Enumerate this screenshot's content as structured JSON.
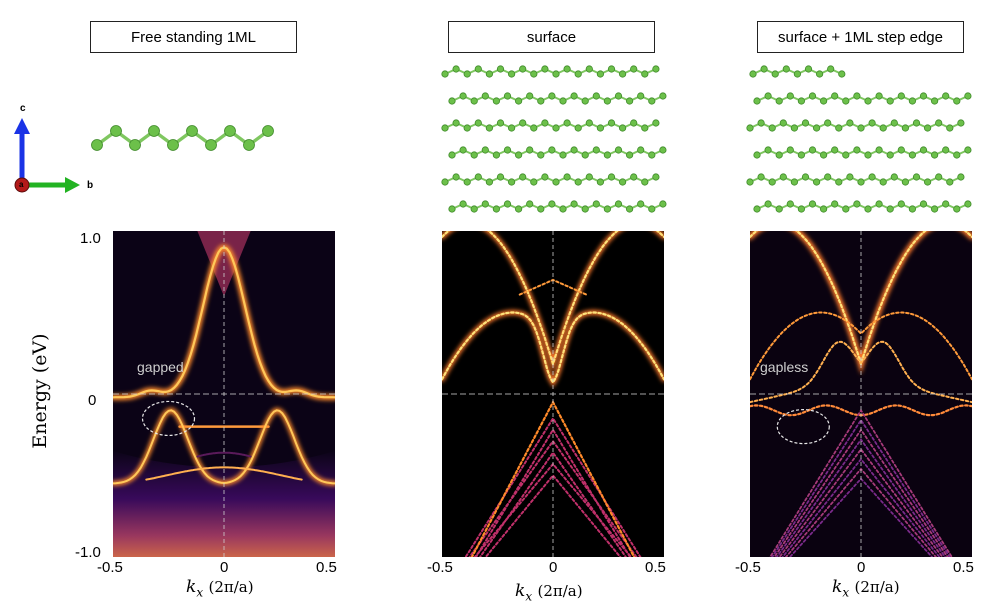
{
  "titles": {
    "left": "Free standing 1ML",
    "middle": "surface",
    "right": "surface + 1ML step edge"
  },
  "axes": {
    "y_title": "Energy (eV)",
    "y_ticks": [
      "1.0",
      "0",
      "-1.0"
    ],
    "x_ticks": [
      "-0.5",
      "0",
      "0.5"
    ],
    "x_label_k": "k",
    "x_label_sub": "x",
    "x_label_unit": "(2π/a)"
  },
  "annotations": {
    "left": "gapped",
    "right": "gapless"
  },
  "triad": {
    "c": "c",
    "b": "b",
    "a": "a"
  },
  "colors": {
    "atom": "#6cc04a",
    "bond": "#7fc760",
    "band": "#ffd26a",
    "axis_c": "#1a33e6",
    "axis_b": "#22b322",
    "axis_a": "#b31a1a"
  },
  "chart_data": [
    {
      "type": "heatmap",
      "title": "Free standing 1ML",
      "xlabel": "k_x (2π/a)",
      "ylabel": "Energy (eV)",
      "xlim": [
        -0.5,
        0.5
      ],
      "ylim": [
        -1.0,
        1.0
      ]
    },
    {
      "type": "heatmap",
      "title": "surface",
      "xlabel": "k_x (2π/a)",
      "ylabel": "",
      "xlim": [
        -0.5,
        0.5
      ],
      "ylim": [
        -1.0,
        1.0
      ]
    },
    {
      "type": "heatmap",
      "title": "surface + 1ML step edge",
      "xlabel": "k_x (2π/a)",
      "ylabel": "",
      "xlim": [
        -0.5,
        0.5
      ],
      "ylim": [
        -1.0,
        1.0
      ]
    }
  ]
}
